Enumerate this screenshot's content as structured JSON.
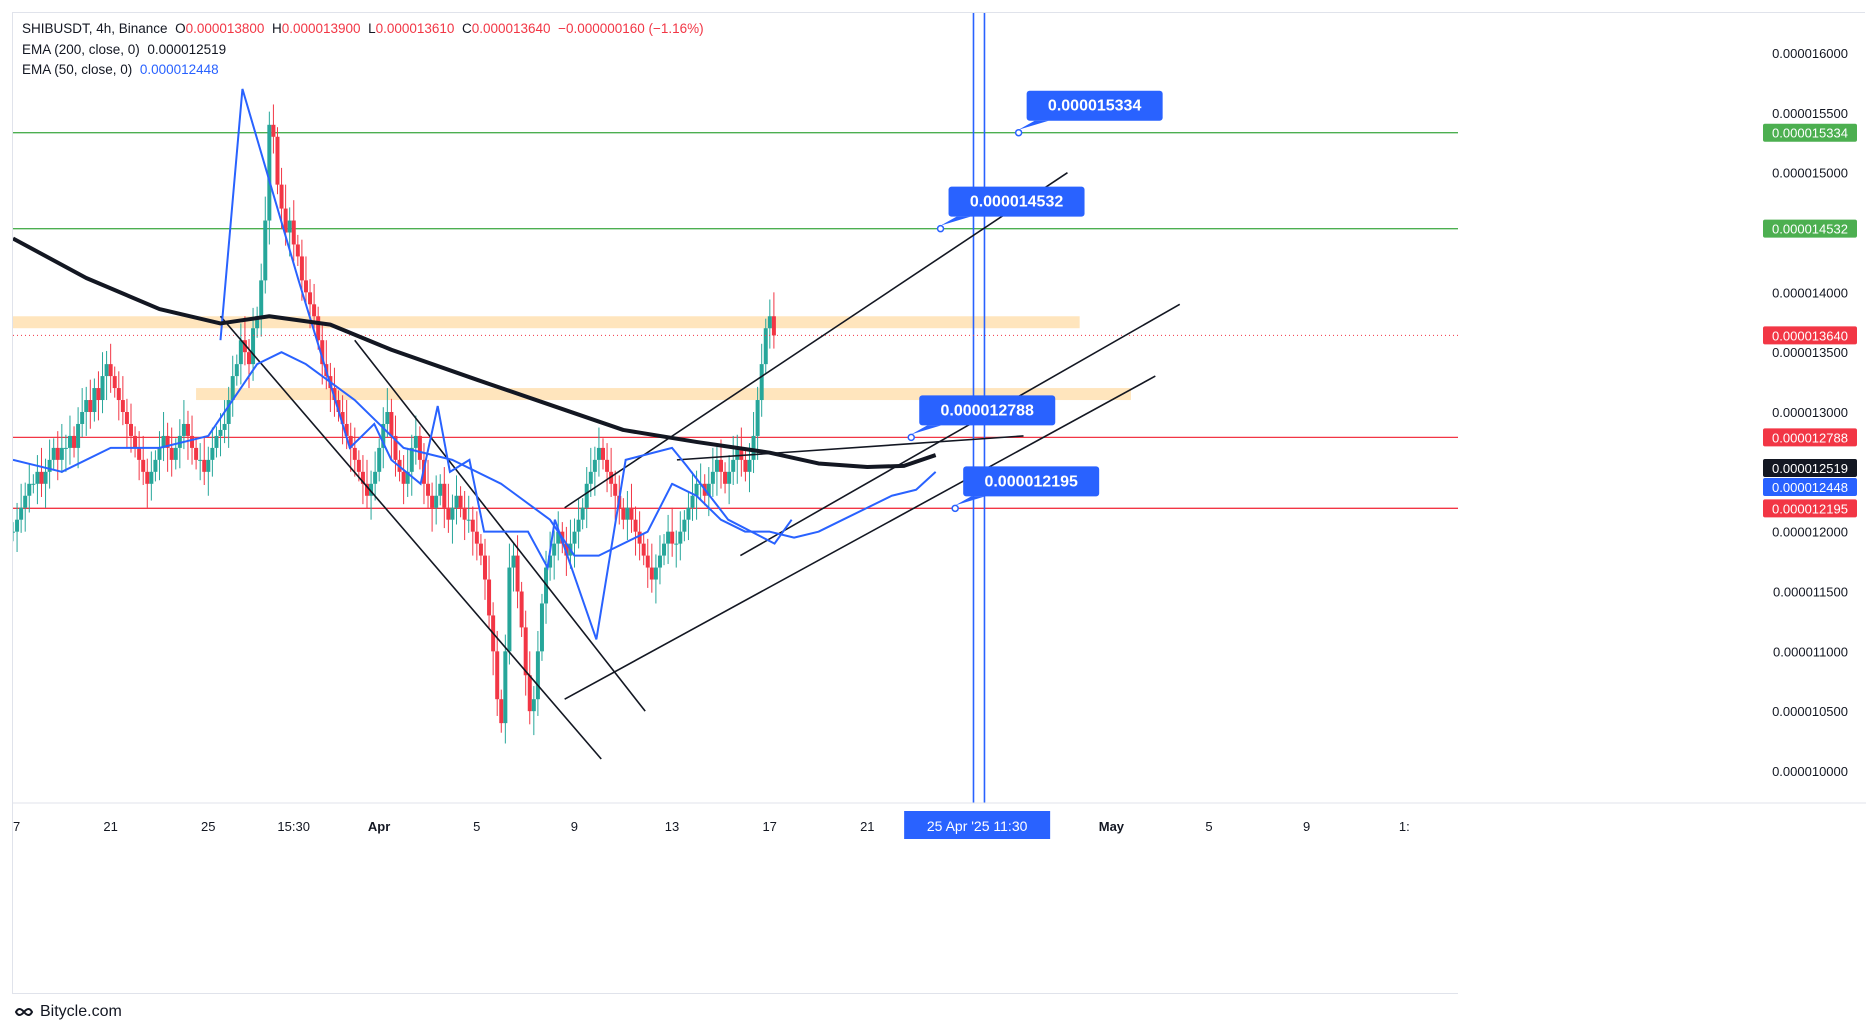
{
  "header": {
    "symbol": "SHIBUSDT, 4h, Binance",
    "o_label": "O",
    "o": "0.000013800",
    "h_label": "H",
    "h": "0.000013900",
    "l_label": "L",
    "l": "0.000013610",
    "c_label": "C",
    "c": "0.000013640",
    "change": "−0.000000160 (−1.16%)",
    "ema200_label": "EMA (200, close, 0)",
    "ema200": "0.000012519",
    "ema50_label": "EMA (50, close, 0)",
    "ema50": "0.000012448"
  },
  "footer": {
    "brand": "Bitycle.com"
  },
  "colors": {
    "up": "#26a69a",
    "down": "#f23645",
    "ema200": "#131722",
    "ema50": "#2962ff",
    "resistance": "#4caf50",
    "support": "#f23645",
    "zone": "#ffe0b2",
    "callout": "#2962ff"
  },
  "chart_data": {
    "type": "candlestick",
    "y_axis": {
      "range": [
        9.8e-06,
        1.62e-05
      ],
      "ticks": [
        "0.000016000",
        "0.000015500",
        "0.000015000",
        "0.000014000",
        "0.000013500",
        "0.000013000",
        "0.000012000",
        "0.000011500",
        "0.000011000",
        "0.000010500",
        "0.000010000"
      ],
      "tick_values": [
        1.6e-05,
        1.55e-05,
        1.5e-05,
        1.4e-05,
        1.35e-05,
        1.3e-05,
        1.2e-05,
        1.15e-05,
        1.1e-05,
        1.05e-05,
        1e-05
      ]
    },
    "x_axis": {
      "labels": [
        "17",
        "21",
        "25",
        "15:30",
        "Apr",
        "5",
        "9",
        "13",
        "17",
        "21",
        "May",
        "5",
        "9",
        "1:"
      ],
      "label_days": [
        0,
        4,
        8,
        11.5,
        15,
        19,
        23,
        27,
        31,
        35,
        45,
        49,
        53,
        57
      ],
      "cursor_label": "25 Apr '25   11:30",
      "cursor_day": 39.5
    },
    "price_lines": [
      {
        "name": "resistance-2",
        "value": 1.5334e-05,
        "label": "0.000015334",
        "color": "#4caf50",
        "callout": "0.000015334",
        "callout_day": 41.2
      },
      {
        "name": "resistance-1",
        "value": 1.4532e-05,
        "label": "0.000014532",
        "color": "#4caf50",
        "callout": "0.000014532",
        "callout_day": 38.0
      },
      {
        "name": "support-1",
        "value": 1.2788e-05,
        "label": "0.000012788",
        "color": "#f23645",
        "callout": "0.000012788",
        "callout_day": 36.8
      },
      {
        "name": "support-2",
        "value": 1.2195e-05,
        "label": "0.000012195",
        "color": "#f23645",
        "callout": "0.000012195",
        "callout_day": 38.6
      }
    ],
    "axis_tags": [
      {
        "name": "last-price",
        "value": 1.364e-05,
        "label": "0.000013640",
        "bg": "#f23645"
      },
      {
        "name": "ema200",
        "value": 1.2519e-05,
        "label": "0.000012519",
        "bg": "#131722"
      },
      {
        "name": "ema50",
        "value": 1.2448e-05,
        "label": "0.000012448",
        "bg": "#2962ff"
      }
    ],
    "zones": [
      {
        "name": "upper-zone",
        "from": 1.37e-05,
        "to": 1.38e-05,
        "start_day": 0,
        "end_day": 43.7
      },
      {
        "name": "lower-zone",
        "from": 1.31e-05,
        "to": 1.32e-05,
        "start_day": 7.5,
        "end_day": 45.8
      }
    ],
    "ema200": [
      [
        0,
        1.445e-05
      ],
      [
        3,
        1.412e-05
      ],
      [
        6,
        1.386e-05
      ],
      [
        8.5,
        1.374e-05
      ],
      [
        10.5,
        1.38e-05
      ],
      [
        13,
        1.373e-05
      ],
      [
        15.5,
        1.352e-05
      ],
      [
        19,
        1.327e-05
      ],
      [
        22,
        1.306e-05
      ],
      [
        25,
        1.285e-05
      ],
      [
        28,
        1.275e-05
      ],
      [
        31,
        1.266e-05
      ],
      [
        33,
        1.257e-05
      ],
      [
        35,
        1.254e-05
      ],
      [
        36.5,
        1.255e-05
      ],
      [
        37.8,
        1.264e-05
      ]
    ],
    "ema50": [
      [
        0,
        1.26e-05
      ],
      [
        2,
        1.25e-05
      ],
      [
        4,
        1.27e-05
      ],
      [
        6,
        1.27e-05
      ],
      [
        8,
        1.28e-05
      ],
      [
        9,
        1.31e-05
      ],
      [
        10,
        1.34e-05
      ],
      [
        11,
        1.35e-05
      ],
      [
        12,
        1.34e-05
      ],
      [
        14,
        1.31e-05
      ],
      [
        16,
        1.27e-05
      ],
      [
        18,
        1.26e-05
      ],
      [
        20,
        1.24e-05
      ],
      [
        22,
        1.21e-05
      ],
      [
        23,
        1.18e-05
      ],
      [
        24,
        1.18e-05
      ],
      [
        26,
        1.2e-05
      ],
      [
        27,
        1.24e-05
      ],
      [
        28,
        1.23e-05
      ],
      [
        29,
        1.21e-05
      ],
      [
        30,
        1.2e-05
      ],
      [
        31,
        1.2e-05
      ],
      [
        32,
        1.195e-05
      ],
      [
        33,
        1.2e-05
      ],
      [
        34,
        1.21e-05
      ],
      [
        35,
        1.22e-05
      ],
      [
        36,
        1.23e-05
      ],
      [
        37,
        1.235e-05
      ],
      [
        37.8,
        1.25e-05
      ]
    ],
    "zigzag": [
      [
        8.5,
        1.36e-05
      ],
      [
        9.4,
        1.57e-05
      ],
      [
        11.7,
        1.41e-05
      ],
      [
        13.8,
        1.27e-05
      ],
      [
        14.8,
        1.29e-05
      ],
      [
        15.5,
        1.26e-05
      ],
      [
        16.7,
        1.24e-05
      ],
      [
        17.4,
        1.305e-05
      ],
      [
        17.9,
        1.25e-05
      ],
      [
        18.7,
        1.26e-05
      ],
      [
        19.3,
        1.2e-05
      ],
      [
        21.1,
        1.2e-05
      ],
      [
        21.9,
        1.17e-05
      ],
      [
        22.2,
        1.21e-05
      ],
      [
        23.9,
        1.11e-05
      ],
      [
        25.1,
        1.26e-05
      ],
      [
        27.0,
        1.27e-05
      ],
      [
        27.6,
        1.255e-05
      ],
      [
        29.3,
        1.21e-05
      ],
      [
        31.2,
        1.19e-05
      ],
      [
        31.9,
        1.21e-05
      ]
    ],
    "trendlines": [
      [
        [
          8.5,
          1.38e-05
        ],
        [
          24.1,
          1.01e-05
        ]
      ],
      [
        [
          14.0,
          1.36e-05
        ],
        [
          25.9,
          1.05e-05
        ]
      ],
      [
        [
          22.6,
          1.06e-05
        ],
        [
          46.8,
          1.33e-05
        ]
      ],
      [
        [
          22.6,
          1.22e-05
        ],
        [
          43.2,
          1.5e-05
        ]
      ],
      [
        [
          29.8,
          1.18e-05
        ],
        [
          47.8,
          1.39e-05
        ]
      ],
      [
        [
          27.2,
          1.26e-05
        ],
        [
          41.4,
          1.28e-05
        ]
      ]
    ],
    "vlines": [
      39.35,
      39.8
    ],
    "candles": {
      "start_day": 0.0,
      "step_days": 0.1667,
      "close": [
        1.2e-05,
        1.21e-05,
        1.22e-05,
        1.23e-05,
        1.24e-05,
        1.24e-05,
        1.25e-05,
        1.24e-05,
        1.25e-05,
        1.26e-05,
        1.27e-05,
        1.26e-05,
        1.27e-05,
        1.27e-05,
        1.28e-05,
        1.27e-05,
        1.29e-05,
        1.3e-05,
        1.31e-05,
        1.3e-05,
        1.32e-05,
        1.31e-05,
        1.33e-05,
        1.34e-05,
        1.33e-05,
        1.32e-05,
        1.31e-05,
        1.3e-05,
        1.29e-05,
        1.28e-05,
        1.27e-05,
        1.26e-05,
        1.25e-05,
        1.24e-05,
        1.25e-05,
        1.26e-05,
        1.27e-05,
        1.28e-05,
        1.27e-05,
        1.26e-05,
        1.27e-05,
        1.28e-05,
        1.29e-05,
        1.28e-05,
        1.27e-05,
        1.26e-05,
        1.26e-05,
        1.25e-05,
        1.26e-05,
        1.27e-05,
        1.28e-05,
        1.285e-05,
        1.29e-05,
        1.31e-05,
        1.33e-05,
        1.34e-05,
        1.36e-05,
        1.35e-05,
        1.34e-05,
        1.37e-05,
        1.38e-05,
        1.41e-05,
        1.46e-05,
        1.54e-05,
        1.53e-05,
        1.49e-05,
        1.47e-05,
        1.45e-05,
        1.46e-05,
        1.44e-05,
        1.43e-05,
        1.41e-05,
        1.4e-05,
        1.39e-05,
        1.38e-05,
        1.36e-05,
        1.34e-05,
        1.33e-05,
        1.32e-05,
        1.31e-05,
        1.3e-05,
        1.29e-05,
        1.28e-05,
        1.27e-05,
        1.26e-05,
        1.25e-05,
        1.24e-05,
        1.23e-05,
        1.24e-05,
        1.25e-05,
        1.27e-05,
        1.29e-05,
        1.3e-05,
        1.28e-05,
        1.26e-05,
        1.25e-05,
        1.24e-05,
        1.25e-05,
        1.27e-05,
        1.28e-05,
        1.26e-05,
        1.24e-05,
        1.23e-05,
        1.22e-05,
        1.23e-05,
        1.24e-05,
        1.22e-05,
        1.21e-05,
        1.22e-05,
        1.23e-05,
        1.22e-05,
        1.21e-05,
        1.21e-05,
        1.2e-05,
        1.19e-05,
        1.18e-05,
        1.16e-05,
        1.13e-05,
        1.1e-05,
        1.06e-05,
        1.04e-05,
        1.1e-05,
        1.17e-05,
        1.18e-05,
        1.15e-05,
        1.12e-05,
        1.08e-05,
        1.05e-05,
        1.06e-05,
        1.1e-05,
        1.14e-05,
        1.17e-05,
        1.18e-05,
        1.19e-05,
        1.2e-05,
        1.19e-05,
        1.18e-05,
        1.19e-05,
        1.2e-05,
        1.21e-05,
        1.22e-05,
        1.24e-05,
        1.25e-05,
        1.26e-05,
        1.27e-05,
        1.26e-05,
        1.25e-05,
        1.24e-05,
        1.23e-05,
        1.22e-05,
        1.21e-05,
        1.22e-05,
        1.21e-05,
        1.2e-05,
        1.19e-05,
        1.18e-05,
        1.17e-05,
        1.16e-05,
        1.17e-05,
        1.18e-05,
        1.19e-05,
        1.2e-05,
        1.19e-05,
        1.19e-05,
        1.2e-05,
        1.21e-05,
        1.22e-05,
        1.23e-05,
        1.24e-05,
        1.24e-05,
        1.23e-05,
        1.24e-05,
        1.25e-05,
        1.26e-05,
        1.25e-05,
        1.24e-05,
        1.25e-05,
        1.26e-05,
        1.27e-05,
        1.26e-05,
        1.25e-05,
        1.26e-05,
        1.28e-05,
        1.31e-05,
        1.34e-05,
        1.37e-05,
        1.38e-05,
        1.364e-05
      ]
    }
  }
}
